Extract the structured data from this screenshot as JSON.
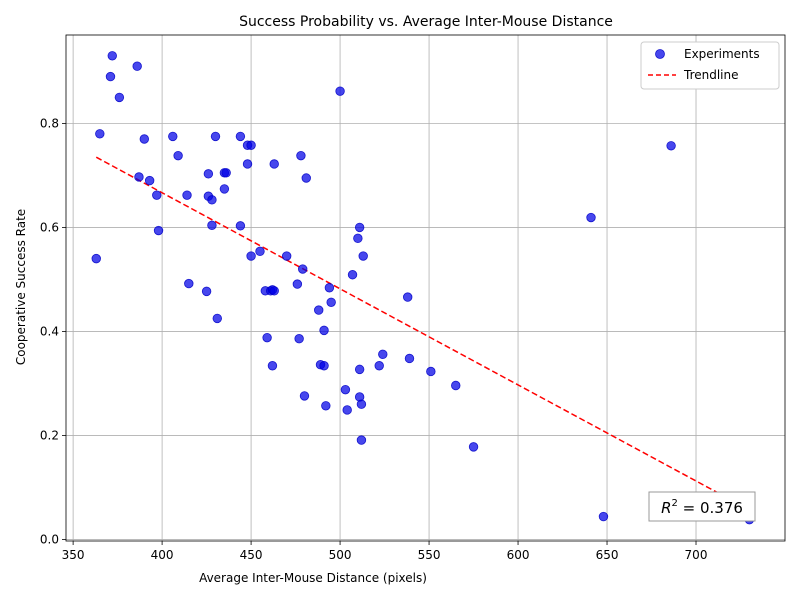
{
  "chart_data": {
    "type": "scatter",
    "title": "Success Probability vs. Average Inter-Mouse Distance",
    "xlabel": "Average Inter-Mouse Distance (pixels)",
    "ylabel": "Cooperative Success Rate",
    "xlim": [
      346,
      750
    ],
    "ylim": [
      -0.003,
      0.97
    ],
    "xticks": [
      350,
      400,
      450,
      500,
      550,
      600,
      650,
      700
    ],
    "yticks": [
      0.0,
      0.2,
      0.4,
      0.6,
      0.8
    ],
    "grid": true,
    "legend_position": "top-right",
    "legend": {
      "scatter_label": "Experiments",
      "trend_label": "Trendline"
    },
    "annotation": {
      "prefix": "R",
      "superscript": "2",
      "suffix": " = 0.376"
    },
    "series": [
      {
        "name": "Experiments",
        "color": "#0000ff",
        "points": [
          [
            372,
            0.93
          ],
          [
            386,
            0.91
          ],
          [
            371,
            0.89
          ],
          [
            376,
            0.85
          ],
          [
            365,
            0.78
          ],
          [
            390,
            0.77
          ],
          [
            406,
            0.775
          ],
          [
            430,
            0.775
          ],
          [
            444,
            0.775
          ],
          [
            448,
            0.758
          ],
          [
            450,
            0.758
          ],
          [
            409,
            0.738
          ],
          [
            448,
            0.722
          ],
          [
            463,
            0.722
          ],
          [
            478,
            0.738
          ],
          [
            481,
            0.695
          ],
          [
            387,
            0.697
          ],
          [
            393,
            0.69
          ],
          [
            426,
            0.703
          ],
          [
            435,
            0.705
          ],
          [
            436,
            0.705
          ],
          [
            435,
            0.674
          ],
          [
            397,
            0.662
          ],
          [
            414,
            0.662
          ],
          [
            426,
            0.66
          ],
          [
            428,
            0.653
          ],
          [
            428,
            0.604
          ],
          [
            444,
            0.603
          ],
          [
            398,
            0.594
          ],
          [
            363,
            0.54
          ],
          [
            500,
            0.862
          ],
          [
            686,
            0.757
          ],
          [
            641,
            0.619
          ],
          [
            511,
            0.6
          ],
          [
            510,
            0.579
          ],
          [
            455,
            0.554
          ],
          [
            470,
            0.545
          ],
          [
            513,
            0.545
          ],
          [
            450,
            0.545
          ],
          [
            479,
            0.52
          ],
          [
            507,
            0.509
          ],
          [
            415,
            0.492
          ],
          [
            476,
            0.491
          ],
          [
            494,
            0.484
          ],
          [
            425,
            0.477
          ],
          [
            458,
            0.478
          ],
          [
            461,
            0.478
          ],
          [
            462,
            0.48
          ],
          [
            463,
            0.478
          ],
          [
            538,
            0.466
          ],
          [
            495,
            0.456
          ],
          [
            488,
            0.441
          ],
          [
            431,
            0.425
          ],
          [
            491,
            0.402
          ],
          [
            459,
            0.388
          ],
          [
            477,
            0.386
          ],
          [
            524,
            0.356
          ],
          [
            539,
            0.348
          ],
          [
            462,
            0.334
          ],
          [
            489,
            0.336
          ],
          [
            491,
            0.334
          ],
          [
            522,
            0.334
          ],
          [
            511,
            0.327
          ],
          [
            551,
            0.323
          ],
          [
            565,
            0.296
          ],
          [
            503,
            0.288
          ],
          [
            480,
            0.276
          ],
          [
            511,
            0.274
          ],
          [
            512,
            0.26
          ],
          [
            492,
            0.257
          ],
          [
            504,
            0.249
          ],
          [
            512,
            0.191
          ],
          [
            575,
            0.178
          ],
          [
            648,
            0.044
          ],
          [
            730,
            0.038
          ]
        ]
      },
      {
        "name": "Trendline",
        "color": "#ff0000",
        "line": [
          [
            363,
            0.735
          ],
          [
            730,
            0.057
          ]
        ]
      }
    ]
  }
}
